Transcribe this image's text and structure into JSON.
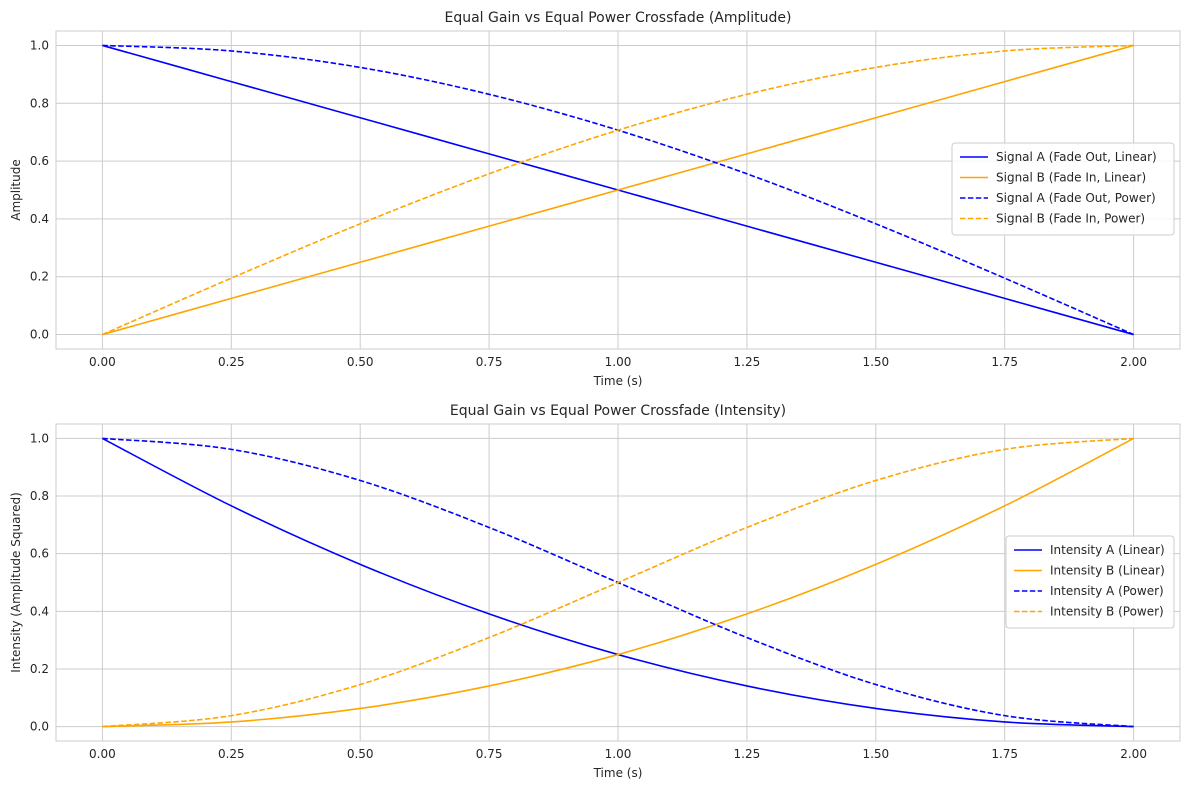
{
  "chart_data": [
    {
      "type": "line",
      "title": "Equal Gain vs Equal Power Crossfade (Amplitude)",
      "xlabel": "Time (s)",
      "ylabel": "Amplitude",
      "xlim": [
        -0.09,
        2.09
      ],
      "ylim": [
        -0.05,
        1.05
      ],
      "xticks": [
        0.0,
        0.25,
        0.5,
        0.75,
        1.0,
        1.25,
        1.5,
        1.75,
        2.0
      ],
      "xtick_labels": [
        "0.00",
        "0.25",
        "0.50",
        "0.75",
        "1.00",
        "1.25",
        "1.50",
        "1.75",
        "2.00"
      ],
      "yticks": [
        0.0,
        0.2,
        0.4,
        0.6,
        0.8,
        1.0
      ],
      "ytick_labels": [
        "0.0",
        "0.2",
        "0.4",
        "0.6",
        "0.8",
        "1.0"
      ],
      "grid": true,
      "legend_position": "center-right",
      "x": [
        0.0,
        0.25,
        0.5,
        0.75,
        1.0,
        1.25,
        1.5,
        1.75,
        2.0
      ],
      "series": [
        {
          "name": "Signal A (Fade Out, Linear)",
          "color": "#0000ff",
          "dash": "solid",
          "values": [
            1.0,
            0.875,
            0.75,
            0.625,
            0.5,
            0.375,
            0.25,
            0.125,
            0.0
          ]
        },
        {
          "name": "Signal B (Fade In, Linear)",
          "color": "#ffa500",
          "dash": "solid",
          "values": [
            0.0,
            0.125,
            0.25,
            0.375,
            0.5,
            0.625,
            0.75,
            0.875,
            1.0
          ]
        },
        {
          "name": "Signal A (Fade Out, Power)",
          "color": "#0000ff",
          "dash": "dashed",
          "values": [
            1.0,
            0.981,
            0.924,
            0.831,
            0.707,
            0.556,
            0.383,
            0.195,
            0.0
          ]
        },
        {
          "name": "Signal B (Fade In, Power)",
          "color": "#ffa500",
          "dash": "dashed",
          "values": [
            0.0,
            0.195,
            0.383,
            0.556,
            0.707,
            0.831,
            0.924,
            0.981,
            1.0
          ]
        }
      ]
    },
    {
      "type": "line",
      "title": "Equal Gain vs Equal Power Crossfade (Intensity)",
      "xlabel": "Time (s)",
      "ylabel": "Intensity (Amplitude Squared)",
      "xlim": [
        -0.09,
        2.09
      ],
      "ylim": [
        -0.05,
        1.05
      ],
      "xticks": [
        0.0,
        0.25,
        0.5,
        0.75,
        1.0,
        1.25,
        1.5,
        1.75,
        2.0
      ],
      "xtick_labels": [
        "0.00",
        "0.25",
        "0.50",
        "0.75",
        "1.00",
        "1.25",
        "1.50",
        "1.75",
        "2.00"
      ],
      "yticks": [
        0.0,
        0.2,
        0.4,
        0.6,
        0.8,
        1.0
      ],
      "ytick_labels": [
        "0.0",
        "0.2",
        "0.4",
        "0.6",
        "0.8",
        "1.0"
      ],
      "grid": true,
      "legend_position": "center-right",
      "x": [
        0.0,
        0.25,
        0.5,
        0.75,
        1.0,
        1.25,
        1.5,
        1.75,
        2.0
      ],
      "series": [
        {
          "name": "Intensity A (Linear)",
          "color": "#0000ff",
          "dash": "solid",
          "values": [
            1.0,
            0.766,
            0.563,
            0.391,
            0.25,
            0.141,
            0.063,
            0.016,
            0.0
          ]
        },
        {
          "name": "Intensity B (Linear)",
          "color": "#ffa500",
          "dash": "solid",
          "values": [
            0.0,
            0.016,
            0.063,
            0.141,
            0.25,
            0.391,
            0.563,
            0.766,
            1.0
          ]
        },
        {
          "name": "Intensity A (Power)",
          "color": "#0000ff",
          "dash": "dashed",
          "values": [
            1.0,
            0.962,
            0.854,
            0.691,
            0.5,
            0.309,
            0.146,
            0.038,
            0.0
          ]
        },
        {
          "name": "Intensity B (Power)",
          "color": "#ffa500",
          "dash": "dashed",
          "values": [
            0.0,
            0.038,
            0.146,
            0.309,
            0.5,
            0.691,
            0.854,
            0.962,
            1.0
          ]
        }
      ]
    }
  ]
}
